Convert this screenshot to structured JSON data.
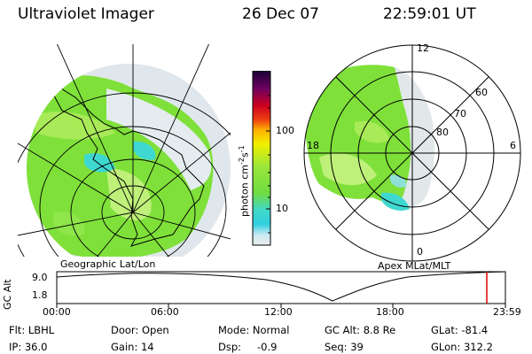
{
  "header": {
    "title": "Ultraviolet Imager",
    "date": "26 Dec 07",
    "time": "22:59:01 UT"
  },
  "colorbar": {
    "ticks": [
      "100",
      "10"
    ],
    "unit_main": "photon cm",
    "unit_exp1": "-2",
    "unit_s": "s",
    "unit_exp2": "-1"
  },
  "panels": {
    "left_caption": "Geographic Lat/Lon",
    "right_caption": "Apex MLat/MLT",
    "mlt_labels": [
      "12",
      "18",
      "6",
      "0"
    ],
    "mlat_labels": [
      "60",
      "70",
      "80"
    ]
  },
  "altitude_plot": {
    "ylabel": "GC Alt",
    "y_ticks": [
      "9.0",
      "1.8"
    ],
    "x_ticks": [
      "00:00",
      "06:00",
      "12:00",
      "18:00",
      "23:59"
    ],
    "current_marker_color": "#dd0000"
  },
  "info": {
    "flt": "Flt: LBHL",
    "ip": "IP: 36.0",
    "door": "Door: Open",
    "gain": "Gain: 14",
    "mode": "Mode: Normal",
    "dsp_label": "Dsp:",
    "dsp_value": "-0.9",
    "gcalt": "GC Alt: 8.8 Re",
    "seq": "Seq: 39",
    "glat": "GLat: -81.4",
    "glon": "GLon: 312.2"
  },
  "colors": {
    "aurora_green": "#7fe03a",
    "aurora_light": "#bff07a",
    "aurora_cyan": "#3fd8d0",
    "background_gray": "#e6e8ea"
  }
}
